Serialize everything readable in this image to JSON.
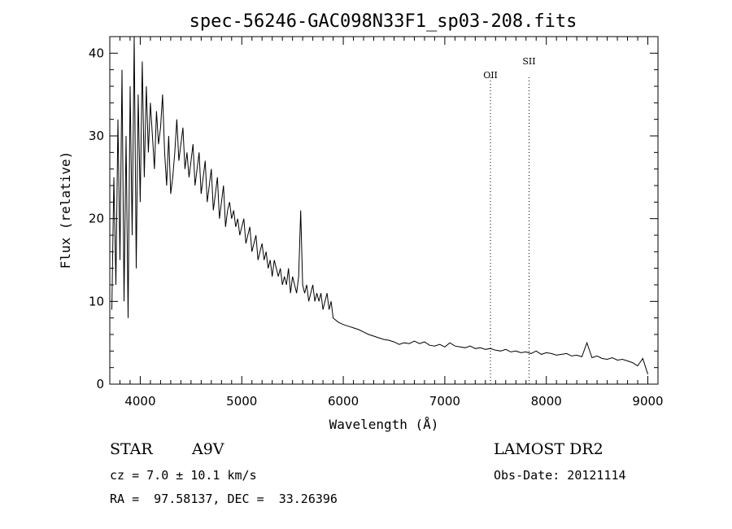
{
  "chart_data": {
    "type": "line",
    "title": "spec-56246-GAC098N33F1_sp03-208.fits",
    "xlabel": "Wavelength (Å)",
    "ylabel": "Flux (relative)",
    "xlim": [
      3700,
      9100
    ],
    "ylim": [
      0,
      42
    ],
    "xticks": [
      4000,
      5000,
      6000,
      7000,
      8000,
      9000
    ],
    "yticks": [
      0,
      10,
      20,
      30,
      40
    ],
    "grid": false,
    "annotations": [
      {
        "label": "OII",
        "x": 7450
      },
      {
        "label": "SII",
        "x": 7830
      }
    ],
    "series": [
      {
        "x": [
          3720,
          3740,
          3760,
          3780,
          3800,
          3820,
          3840,
          3860,
          3880,
          3900,
          3920,
          3940,
          3960,
          3980,
          4000,
          4020,
          4040,
          4060,
          4080,
          4100,
          4120,
          4140,
          4160,
          4180,
          4200,
          4220,
          4240,
          4260,
          4280,
          4300,
          4320,
          4340,
          4360,
          4380,
          4400,
          4420,
          4440,
          4460,
          4480,
          4500,
          4520,
          4540,
          4560,
          4580,
          4600,
          4620,
          4640,
          4660,
          4680,
          4700,
          4720,
          4740,
          4760,
          4780,
          4800,
          4820,
          4840,
          4860,
          4880,
          4900,
          4920,
          4940,
          4960,
          4980,
          5000,
          5020,
          5040,
          5060,
          5080,
          5100,
          5120,
          5140,
          5160,
          5180,
          5200,
          5220,
          5240,
          5260,
          5280,
          5300,
          5320,
          5340,
          5360,
          5380,
          5400,
          5420,
          5440,
          5460,
          5480,
          5500,
          5520,
          5540,
          5560,
          5580,
          5600,
          5620,
          5640,
          5660,
          5680,
          5700,
          5720,
          5740,
          5760,
          5780,
          5800,
          5820,
          5840,
          5860,
          5880,
          5900,
          5950,
          6000,
          6050,
          6100,
          6150,
          6200,
          6250,
          6300,
          6350,
          6400,
          6450,
          6500,
          6550,
          6600,
          6650,
          6700,
          6750,
          6800,
          6850,
          6900,
          6950,
          7000,
          7050,
          7100,
          7150,
          7200,
          7250,
          7300,
          7350,
          7400,
          7450,
          7500,
          7550,
          7600,
          7650,
          7700,
          7750,
          7800,
          7850,
          7900,
          7950,
          8000,
          8050,
          8100,
          8150,
          8200,
          8250,
          8300,
          8350,
          8400,
          8450,
          8500,
          8550,
          8600,
          8650,
          8700,
          8750,
          8800,
          8850,
          8900,
          8950,
          9000
        ],
        "y": [
          9,
          25,
          12,
          32,
          15,
          38,
          10,
          30,
          8,
          36,
          18,
          42,
          14,
          35,
          22,
          39,
          25,
          36,
          28,
          34,
          30,
          26,
          33,
          29,
          31,
          35,
          28,
          24,
          30,
          23,
          25,
          28,
          32,
          27,
          29,
          31,
          26,
          28,
          25,
          27,
          29,
          24,
          26,
          28,
          23,
          25,
          27,
          22,
          24,
          26,
          21,
          23,
          25,
          20,
          22,
          24,
          19,
          21,
          22,
          20,
          21,
          19,
          20,
          18,
          19,
          20,
          17,
          18,
          19,
          16,
          17,
          18,
          15,
          16,
          17,
          15,
          16,
          14,
          15,
          13,
          15,
          14,
          13,
          14,
          12,
          13,
          12,
          14,
          11,
          13,
          12,
          11,
          13,
          21,
          12,
          11,
          12,
          10,
          11,
          12,
          10,
          11,
          10,
          11,
          9,
          10,
          11,
          9,
          10,
          8,
          7.5,
          7.2,
          7.0,
          6.8,
          6.6,
          6.3,
          6.0,
          5.8,
          5.6,
          5.4,
          5.3,
          5.1,
          4.8,
          5.0,
          4.9,
          5.2,
          4.9,
          5.1,
          4.7,
          4.6,
          4.8,
          4.5,
          5.0,
          4.6,
          4.5,
          4.4,
          4.6,
          4.3,
          4.4,
          4.2,
          4.3,
          4.1,
          4.0,
          4.2,
          3.9,
          4.0,
          3.8,
          3.9,
          3.7,
          4.0,
          3.6,
          3.8,
          3.7,
          3.5,
          3.6,
          3.7,
          3.4,
          3.5,
          3.3,
          5.0,
          3.2,
          3.4,
          3.1,
          3.0,
          3.2,
          2.9,
          3.0,
          2.8,
          2.6,
          2.2,
          3.1,
          1.2
        ]
      }
    ]
  },
  "info": {
    "object_class": "STAR",
    "subclass": "A9V",
    "cz": "cz = 7.0 ± 10.1 km/s",
    "coords": "RA =  97.58137, DEC =  33.26396",
    "survey": "LAMOST DR2",
    "obs_date": "Obs-Date: 20121114"
  },
  "colors": {
    "line": "#000000",
    "background": "#ffffff"
  }
}
